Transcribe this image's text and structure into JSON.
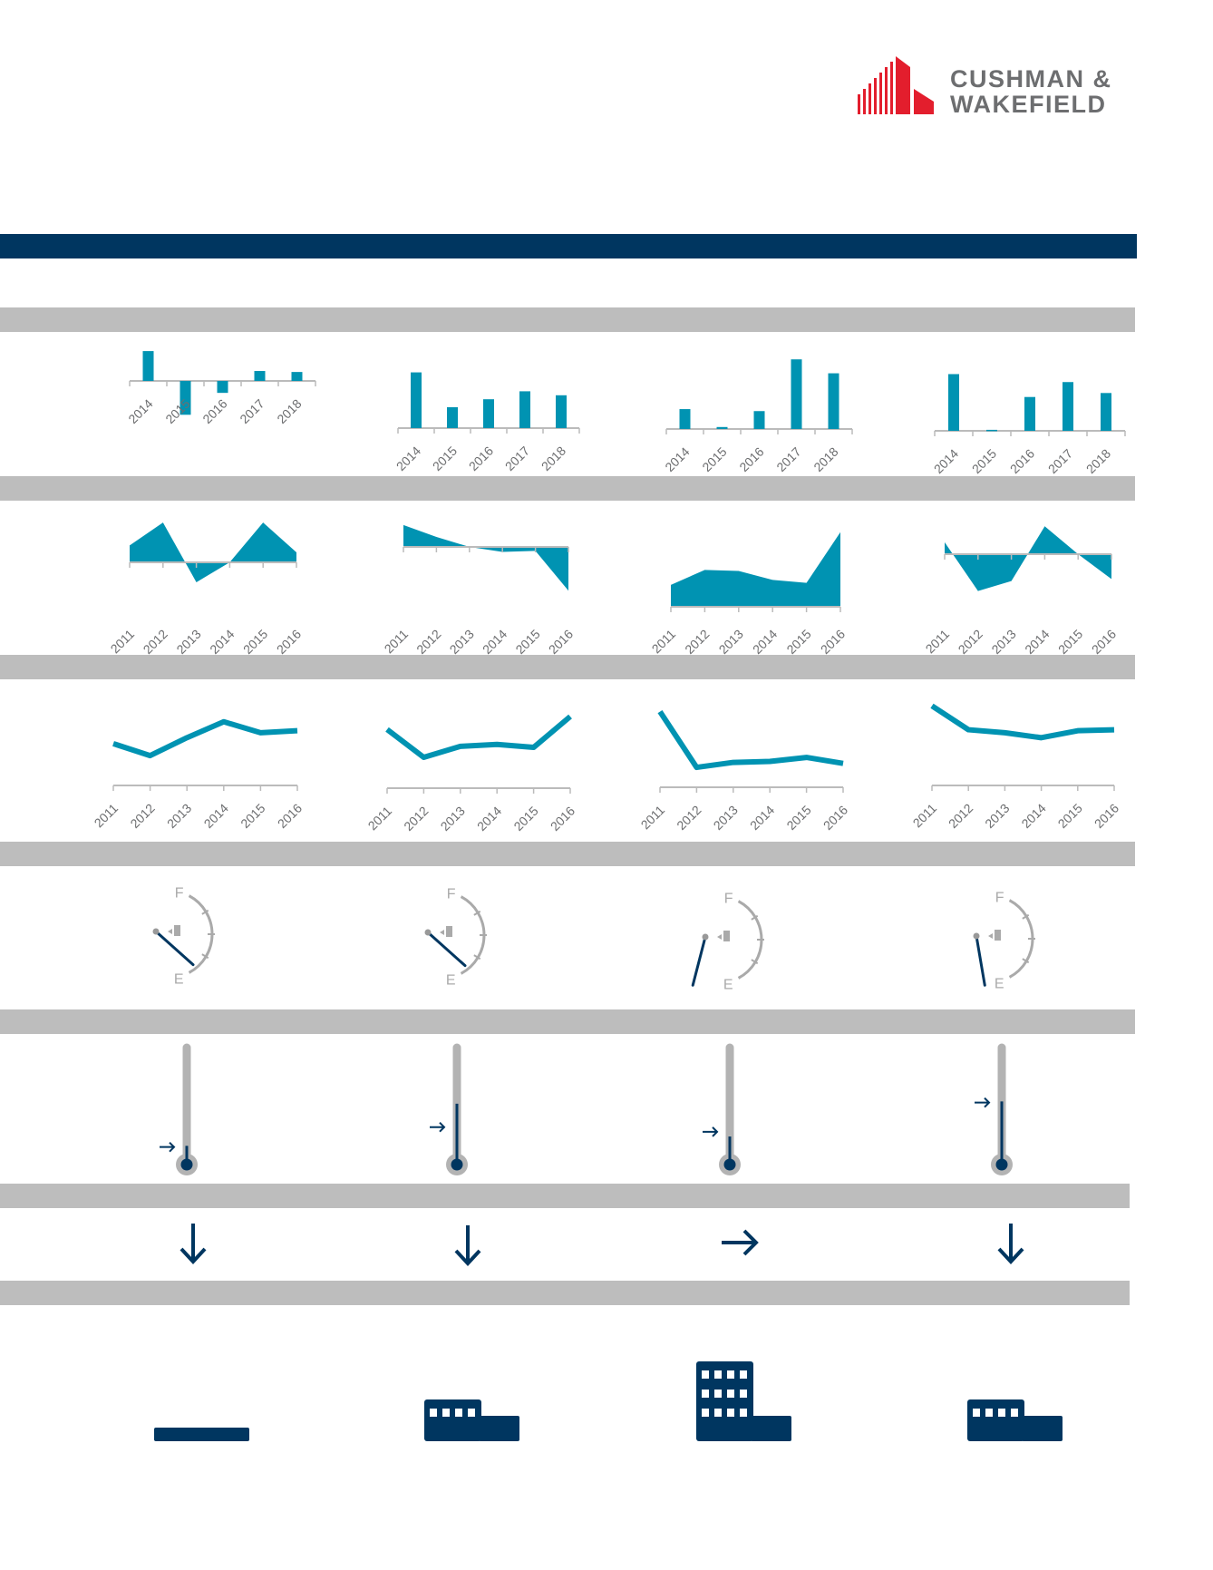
{
  "brand": {
    "name_line1": "CUSHMAN &",
    "name_line2": "WAKEFIELD",
    "logo_color": "#e31e2d",
    "text_color": "#6d6e70"
  },
  "colors": {
    "header_band": "#003660",
    "section_band": "#bdbdbd",
    "chart": "#0093b2",
    "icon": "#003660",
    "axis": "#bbbbbb",
    "label": "#6d6e70"
  },
  "chart_data": [
    {
      "type": "bar",
      "row": 1,
      "column": 1,
      "categories": [
        "2014",
        "2015",
        "2016",
        "2017",
        "2018"
      ],
      "values": [
        30,
        -34,
        -12,
        10,
        9
      ]
    },
    {
      "type": "bar",
      "row": 1,
      "column": 2,
      "categories": [
        "2014",
        "2015",
        "2016",
        "2017",
        "2018"
      ],
      "values": [
        56,
        21,
        29,
        37,
        33
      ]
    },
    {
      "type": "bar",
      "row": 1,
      "column": 3,
      "categories": [
        "2014",
        "2015",
        "2016",
        "2017",
        "2018"
      ],
      "values": [
        20,
        2,
        18,
        70,
        56
      ]
    },
    {
      "type": "bar",
      "row": 1,
      "column": 4,
      "categories": [
        "2014",
        "2015",
        "2016",
        "2017",
        "2018"
      ],
      "values": [
        57,
        1,
        34,
        49,
        38
      ]
    },
    {
      "type": "area",
      "row": 2,
      "column": 1,
      "categories": [
        "2011",
        "2012",
        "2013",
        "2014",
        "2015",
        "2016"
      ],
      "values": [
        17,
        40,
        -20,
        0,
        40,
        10
      ]
    },
    {
      "type": "area",
      "row": 2,
      "column": 2,
      "categories": [
        "2011",
        "2012",
        "2013",
        "2014",
        "2015",
        "2016"
      ],
      "values": [
        22,
        10,
        0,
        -5,
        -4,
        -44
      ]
    },
    {
      "type": "area",
      "row": 2,
      "column": 3,
      "categories": [
        "2011",
        "2012",
        "2013",
        "2014",
        "2015",
        "2016"
      ],
      "values": [
        22,
        37,
        36,
        27,
        24,
        75
      ]
    },
    {
      "type": "area",
      "row": 2,
      "column": 4,
      "categories": [
        "2011",
        "2012",
        "2013",
        "2014",
        "2015",
        "2016"
      ],
      "values": [
        12,
        -37,
        -27,
        28,
        0,
        -25
      ]
    },
    {
      "type": "line",
      "row": 3,
      "column": 1,
      "categories": [
        "2011",
        "2012",
        "2013",
        "2014",
        "2015",
        "2016"
      ],
      "values": [
        42,
        30,
        48,
        64,
        53,
        55
      ]
    },
    {
      "type": "line",
      "row": 3,
      "column": 2,
      "categories": [
        "2011",
        "2012",
        "2013",
        "2014",
        "2015",
        "2016"
      ],
      "values": [
        59,
        31,
        42,
        44,
        41,
        72
      ]
    },
    {
      "type": "line",
      "row": 3,
      "column": 3,
      "categories": [
        "2011",
        "2012",
        "2013",
        "2014",
        "2015",
        "2016"
      ],
      "values": [
        76,
        20,
        25,
        26,
        30,
        24
      ]
    },
    {
      "type": "line",
      "row": 3,
      "column": 4,
      "categories": [
        "2011",
        "2012",
        "2013",
        "2014",
        "2015",
        "2016"
      ],
      "values": [
        80,
        56,
        53,
        48,
        55,
        56
      ]
    }
  ],
  "gauges": {
    "full_label": "F",
    "empty_label": "E",
    "levels": [
      0.12,
      0.12,
      -0.45,
      -0.23
    ]
  },
  "thermometers": {
    "fill_levels": [
      0.16,
      0.52,
      0.24,
      0.54
    ],
    "marker_levels": [
      0.15,
      0.32,
      0.28,
      0.53
    ]
  },
  "trend_arrows": [
    "down",
    "down",
    "right",
    "down"
  ],
  "buildings": {
    "floors": [
      0,
      1,
      3,
      1
    ]
  }
}
